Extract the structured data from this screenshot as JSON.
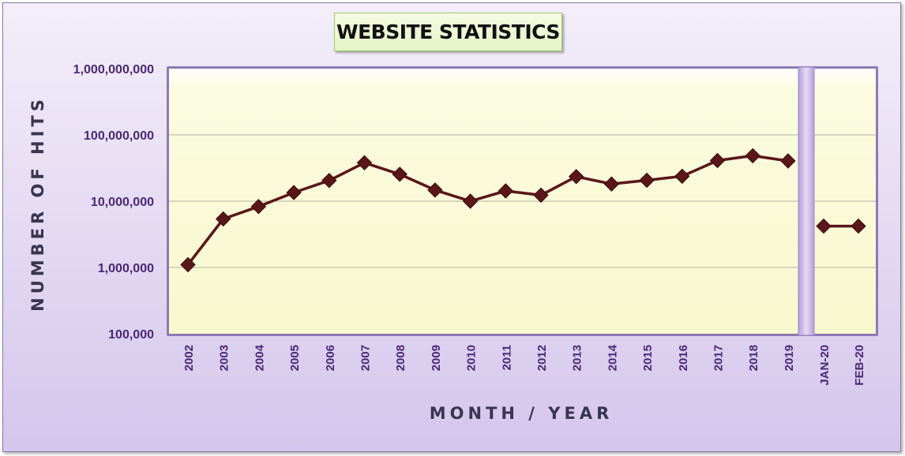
{
  "chart_data": {
    "type": "line",
    "title": "WEBSITE STATISTICS",
    "xlabel": "MONTH / YEAR",
    "ylabel": "NUMBER OF HITS",
    "y_scale": "log",
    "ylim": [
      100000,
      1000000000
    ],
    "y_ticks": [
      100000,
      1000000,
      10000000,
      100000000,
      1000000000
    ],
    "y_tick_labels": [
      "100,000",
      "1,000,000",
      "10,000,000",
      "100,000,000",
      "1,000,000,000"
    ],
    "grid": "horizontal major gridlines",
    "legend": "none",
    "categories": [
      "2002",
      "2003",
      "2004",
      "2005",
      "2006",
      "2007",
      "2008",
      "2009",
      "2010",
      "2011",
      "2012",
      "2013",
      "2014",
      "2015",
      "2016",
      "2017",
      "2018",
      "2019",
      "JAN-20",
      "FEB-20"
    ],
    "segments": [
      {
        "categories": [
          "2002",
          "2003",
          "2004",
          "2005",
          "2006",
          "2007",
          "2008",
          "2009",
          "2010",
          "2011",
          "2012",
          "2013",
          "2014",
          "2015",
          "2016",
          "2017",
          "2018",
          "2019"
        ],
        "values": [
          1100000,
          5400000,
          8300000,
          13500000,
          20500000,
          38000000,
          25500000,
          14700000,
          10000000,
          14300000,
          12300000,
          23500000,
          18200000,
          20700000,
          23800000,
          41000000,
          48500000,
          40500000
        ]
      },
      {
        "categories": [
          "JAN-20",
          "FEB-20"
        ],
        "values": [
          4200000,
          4200000
        ]
      }
    ],
    "colors": {
      "line": "#5a1618",
      "plot_background": "#fdfdd7",
      "separator": "#c9b6e8",
      "tick_text": "#4a2775",
      "axis_title": "#3a3450"
    }
  }
}
